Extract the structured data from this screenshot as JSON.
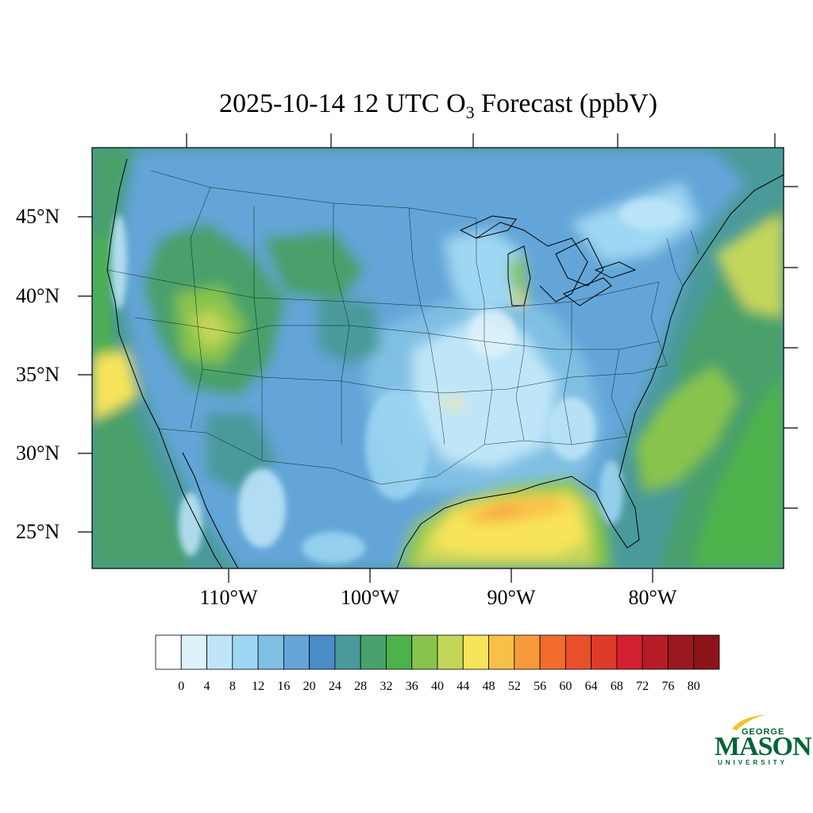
{
  "title": {
    "prefix": "2025-10-14 12 UTC O",
    "subscript": "3",
    "suffix": " Forecast (ppbV)"
  },
  "lat_labels": [
    "45°N",
    "40°N",
    "35°N",
    "30°N",
    "25°N"
  ],
  "lon_labels": [
    "110°W",
    "100°W",
    "90°W",
    "80°W"
  ],
  "colorbar": {
    "labels": [
      "0",
      "4",
      "8",
      "12",
      "16",
      "20",
      "24",
      "28",
      "32",
      "36",
      "40",
      "44",
      "48",
      "52",
      "56",
      "60",
      "64",
      "68",
      "72",
      "76",
      "80"
    ],
    "colors": [
      "#ffffff",
      "#dff2fb",
      "#bfe6f8",
      "#9ed7f3",
      "#80bfe4",
      "#64a5d8",
      "#4a8cc8",
      "#4a9a9a",
      "#48a06a",
      "#4db24a",
      "#88c44c",
      "#c4d65a",
      "#f8e45a",
      "#f8c048",
      "#f89a3c",
      "#f26c2e",
      "#e8502a",
      "#de3a28",
      "#d22030",
      "#b61c26",
      "#9c1820",
      "#8c1418"
    ]
  },
  "map_colors": {
    "ocean": "#4a9a9a",
    "land_low": "#64a5d8",
    "land_mid": "#80bfe4",
    "land_light": "#bfe6f8",
    "green": "#48a06a",
    "green_bright": "#4db24a",
    "yellow_green": "#c4d65a",
    "yellow": "#f8e45a",
    "orange": "#f89a3c"
  },
  "logo": {
    "line1": "GEORGE",
    "line2": "MASON",
    "line3": "UNIVERSITY",
    "color": "#006633"
  }
}
